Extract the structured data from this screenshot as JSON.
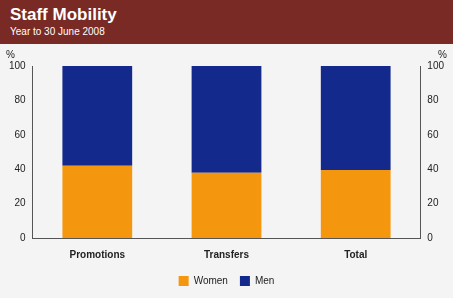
{
  "chart_data": {
    "type": "bar",
    "title": "Staff Mobility",
    "subtitle": "Year to 30 June 2008",
    "categories": [
      "Promotions",
      "Transfers",
      "Total"
    ],
    "series": [
      {
        "name": "Women",
        "color": "#f5960f",
        "values": [
          42,
          38,
          39.5
        ]
      },
      {
        "name": "Men",
        "color": "#14298c",
        "values": [
          58,
          62,
          60.5
        ]
      }
    ],
    "stacked": true,
    "ylabel": "%",
    "ylim": [
      0,
      100
    ],
    "yticks": [
      0,
      20,
      40,
      60,
      80,
      100
    ],
    "y2label": "%",
    "y2lim": [
      0,
      100
    ],
    "y2ticks": [
      0,
      20,
      40,
      60,
      80,
      100
    ],
    "grid": false,
    "legend": "bottom"
  }
}
